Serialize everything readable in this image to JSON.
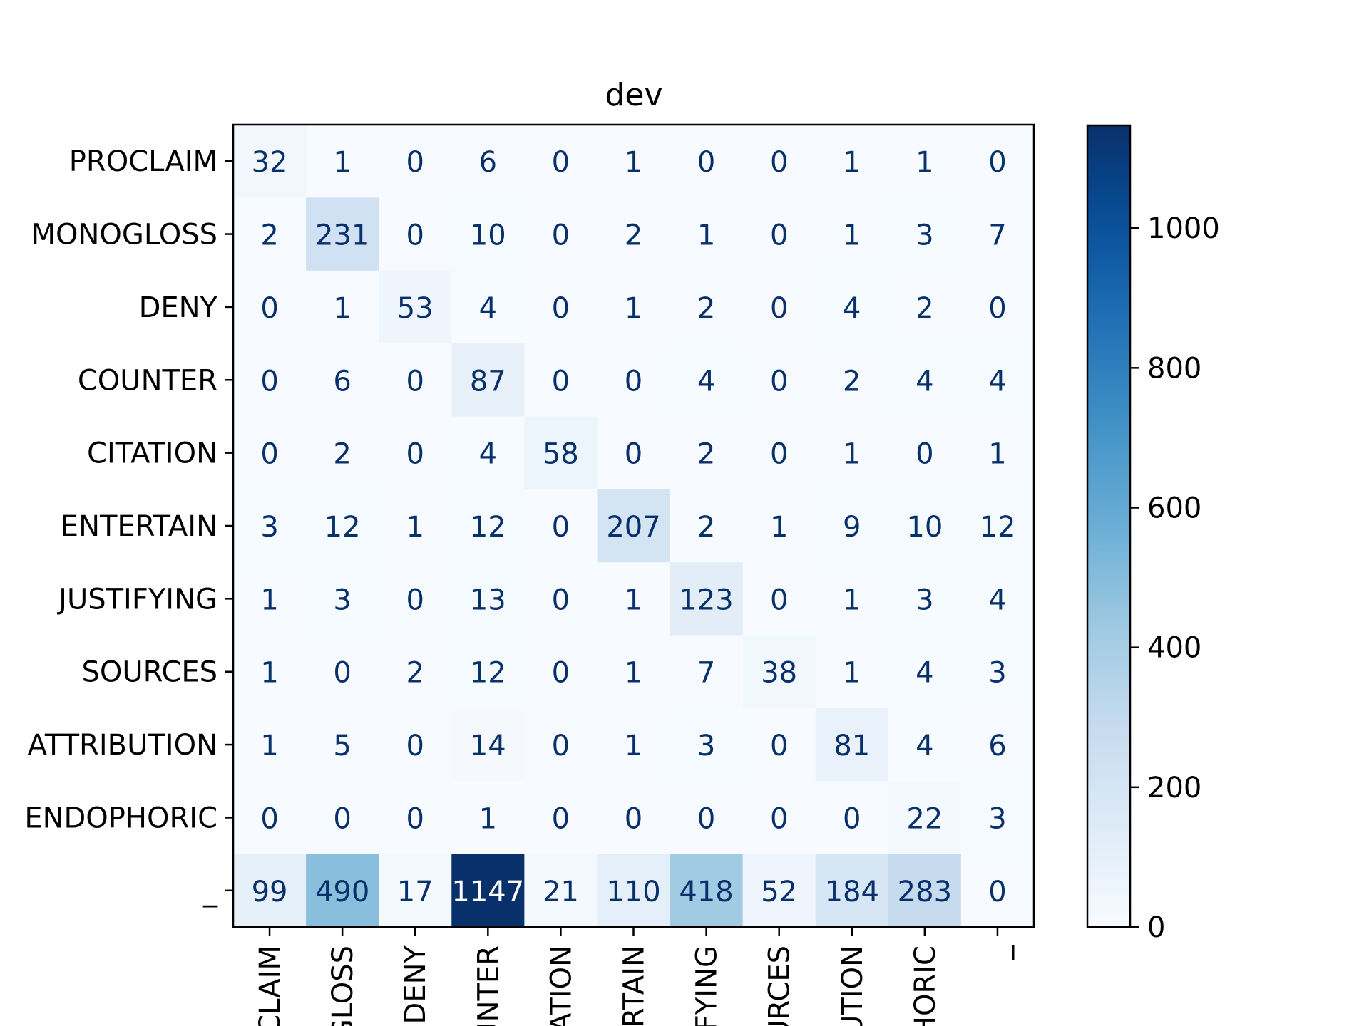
{
  "chart_data": {
    "type": "heatmap",
    "title": "dev",
    "xlabel": "",
    "ylabel": "",
    "colormap": "Blues",
    "colors": {
      "low": "#f7fbff",
      "high": "#08306b",
      "text_dark": "#08306b",
      "text_light": "#ffffff"
    },
    "row_labels": [
      "PROCLAIM",
      "MONOGLOSS",
      "DENY",
      "COUNTER",
      "CITATION",
      "ENTERTAIN",
      "JUSTIFYING",
      "SOURCES",
      "ATTRIBUTION",
      "ENDOPHORIC",
      "_"
    ],
    "col_tick_labels": [
      "CLAIM",
      "GLOSS",
      "DENY",
      "UNTER",
      "ATION",
      "RTAIN",
      "IFYING",
      "URCES",
      "UTION",
      "HORIC",
      "_"
    ],
    "values": [
      [
        32,
        1,
        0,
        6,
        0,
        1,
        0,
        0,
        1,
        1,
        0
      ],
      [
        2,
        231,
        0,
        10,
        0,
        2,
        1,
        0,
        1,
        3,
        7
      ],
      [
        0,
        1,
        53,
        4,
        0,
        1,
        2,
        0,
        4,
        2,
        0
      ],
      [
        0,
        6,
        0,
        87,
        0,
        0,
        4,
        0,
        2,
        4,
        4
      ],
      [
        0,
        2,
        0,
        4,
        58,
        0,
        2,
        0,
        1,
        0,
        1
      ],
      [
        3,
        12,
        1,
        12,
        0,
        207,
        2,
        1,
        9,
        10,
        12
      ],
      [
        1,
        3,
        0,
        13,
        0,
        1,
        123,
        0,
        1,
        3,
        4
      ],
      [
        1,
        0,
        2,
        12,
        0,
        1,
        7,
        38,
        1,
        4,
        3
      ],
      [
        1,
        5,
        0,
        14,
        0,
        1,
        3,
        0,
        81,
        4,
        6
      ],
      [
        0,
        0,
        0,
        1,
        0,
        0,
        0,
        0,
        0,
        22,
        3
      ],
      [
        99,
        490,
        17,
        1147,
        21,
        110,
        418,
        52,
        184,
        283,
        0
      ]
    ],
    "vmin": 0,
    "vmax": 1147,
    "colorbar_ticks": [
      0,
      200,
      400,
      600,
      800,
      1000
    ],
    "grid": false
  }
}
